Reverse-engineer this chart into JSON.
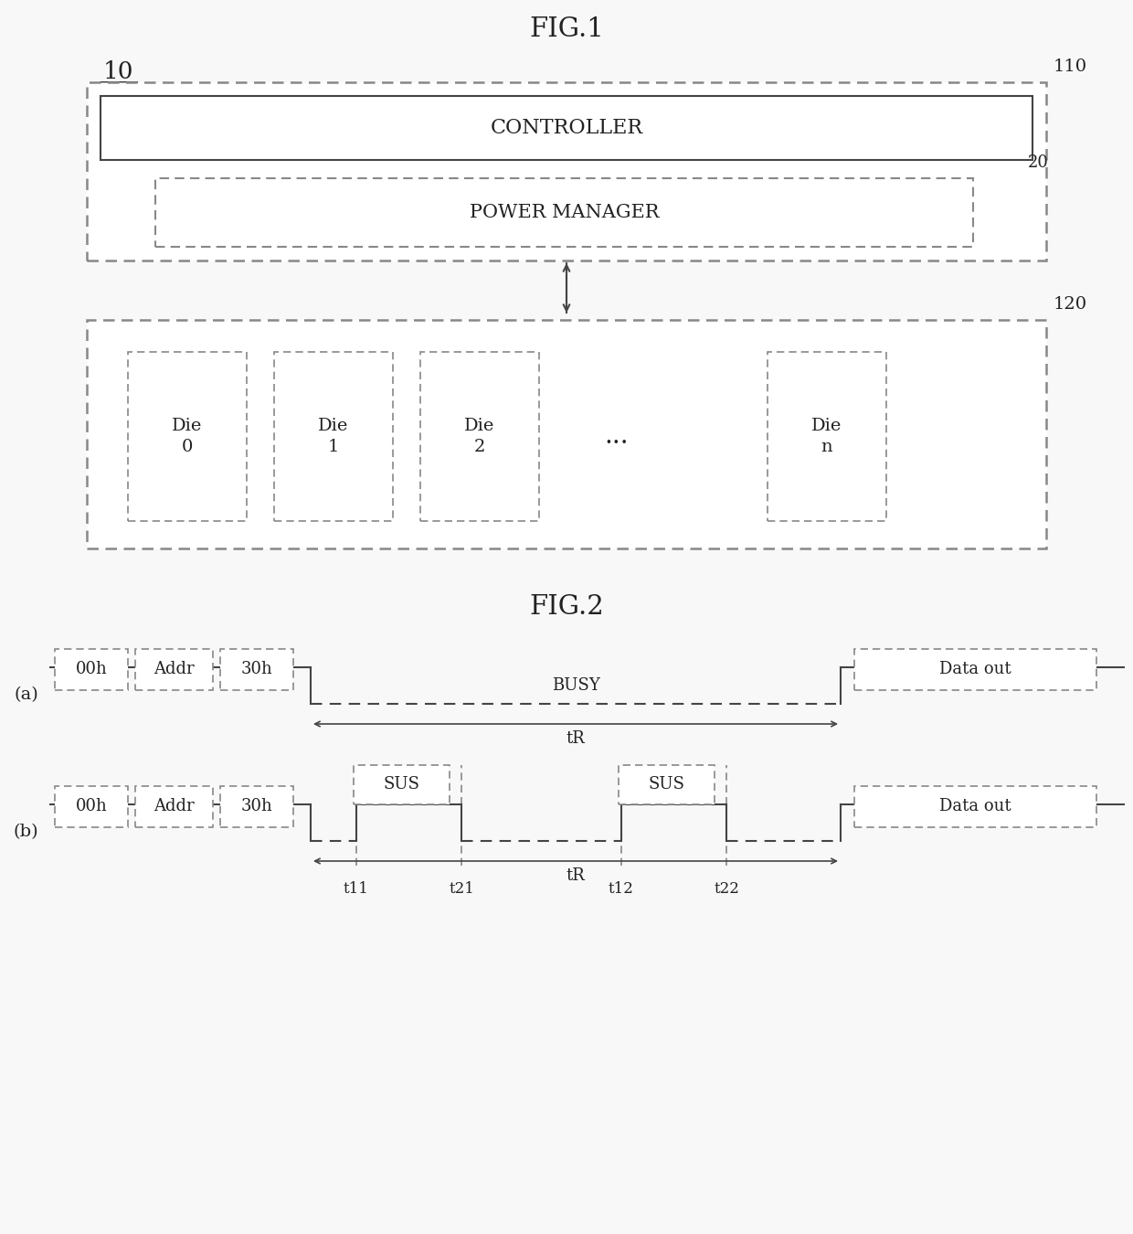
{
  "fig_title1": "FIG.1",
  "fig_title2": "FIG.2",
  "label_10": "10",
  "label_110": "110",
  "label_120": "120",
  "label_20": "20",
  "controller_text": "CONTROLLER",
  "power_manager_text": "POWER MANAGER",
  "die_labels": [
    "Die\n0",
    "Die\n1",
    "Die\n2",
    "...",
    "Die\nn"
  ],
  "label_a": "(a)",
  "label_b": "(b)",
  "cmd_labels": [
    "00h",
    "Addr",
    "30h"
  ],
  "sus_labels": [
    "SUS",
    "SUS"
  ],
  "dataout_label": "Data out",
  "busy_label": "BUSY",
  "tR_label": "tR",
  "t_labels": [
    "t11",
    "t21",
    "t12",
    "t22"
  ],
  "bg_color": "#f8f8f8",
  "line_color": "#444444",
  "dashed_ec": "#888888",
  "text_color": "#222222",
  "font_family": "DejaVu Serif"
}
